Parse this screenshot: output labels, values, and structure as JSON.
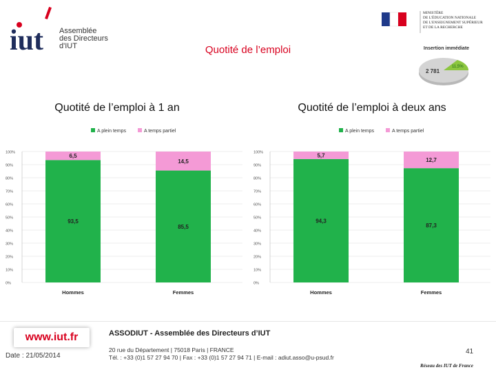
{
  "header": {
    "logo_word": "iut",
    "logo_caption": [
      "Assemblée",
      "des Directeurs",
      "d'IUT"
    ],
    "ministry_lines": [
      "Ministère",
      "de l'éducation nationale",
      "de l'enseignement supérieur",
      "et de la recherche"
    ],
    "main_title": "Quotité de l’emploi"
  },
  "inset": {
    "title": "Insertion immédiate",
    "big_label": "2 781",
    "small_label": "11,5%"
  },
  "colors": {
    "plein": "#21b24b",
    "partiel": "#f49ad6",
    "title_red": "#d8001e",
    "grid": "#d9d9d9"
  },
  "chart_data": [
    {
      "type": "bar",
      "stacked": true,
      "title": "Quotité de l’emploi à 1 an",
      "categories": [
        "Hommes",
        "Femmes"
      ],
      "series": [
        {
          "name": "A plein temps",
          "values": [
            93.5,
            85.5
          ],
          "labels": [
            "93,5",
            "85,5"
          ]
        },
        {
          "name": "A temps partiel",
          "values": [
            6.5,
            14.5
          ],
          "labels": [
            "6,5",
            "14,5"
          ]
        }
      ],
      "y_ticks": [
        "0%",
        "10%",
        "20%",
        "30%",
        "40%",
        "50%",
        "60%",
        "70%",
        "80%",
        "90%",
        "100%"
      ],
      "ylim": [
        0,
        100
      ],
      "legend": "top"
    },
    {
      "type": "bar",
      "stacked": true,
      "title": "Quotité de l’emploi à deux ans",
      "categories": [
        "Hommes",
        "Femmes"
      ],
      "series": [
        {
          "name": "A plein temps",
          "values": [
            94.3,
            87.3
          ],
          "labels": [
            "94,3",
            "87,3"
          ]
        },
        {
          "name": "A temps partiel",
          "values": [
            5.7,
            12.7
          ],
          "labels": [
            "5,7",
            "12,7"
          ]
        }
      ],
      "y_ticks": [
        "0%",
        "10%",
        "20%",
        "30%",
        "40%",
        "50%",
        "60%",
        "70%",
        "80%",
        "90%",
        "100%"
      ],
      "ylim": [
        0,
        100
      ],
      "legend": "top"
    }
  ],
  "footer": {
    "url": "www.iut.fr",
    "date": "Date : 21/05/2014",
    "org": "ASSODIUT - Assemblée des Directeurs d’IUT",
    "address1": "20 rue du Département | 75018 Paris | FRANCE",
    "address2": "Tél. : +33 (0)1 57 27 94 70 | Fax : +33 (0)1 57 27 94 71 | E-mail : adiut.asso@u-psud.fr",
    "page_number": "41",
    "network": "Réseau des IUT de France"
  }
}
